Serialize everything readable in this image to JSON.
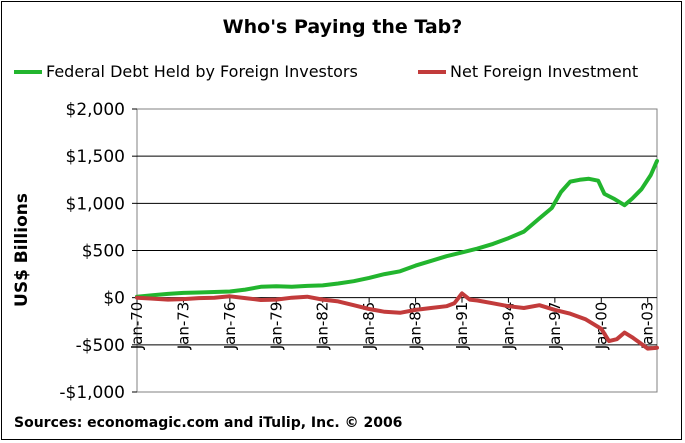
{
  "chart_data": {
    "type": "line",
    "title": "Who's Paying the Tab?",
    "xlabel": "",
    "ylabel": "US$ Billions",
    "ylim": [
      -1000,
      2000
    ],
    "yticks": [
      -1000,
      -500,
      0,
      500,
      1000,
      1500,
      2000
    ],
    "ytick_labels": [
      "-$1,000",
      "-$500",
      "$0",
      "$500",
      "$1,000",
      "$1,500",
      "$2,000"
    ],
    "xlim": [
      1970,
      2003.6
    ],
    "xticks": [
      1970,
      1973,
      1976,
      1979,
      1982,
      1985,
      1988,
      1991,
      1994,
      1997,
      2000,
      2003
    ],
    "xtick_labels": [
      "Jan-70",
      "Jan-73",
      "Jan-76",
      "Jan-79",
      "Jan-82",
      "Jan-85",
      "Jan-88",
      "Jan-91",
      "Jan-94",
      "Jan-97",
      "Jan-00",
      "Jan-03"
    ],
    "grid": "horizontal",
    "legend_position": "top",
    "series": [
      {
        "name": "Federal Debt Held by Foreign Investors",
        "color": "#22b52e",
        "points": [
          [
            1970.0,
            10
          ],
          [
            1971.0,
            25
          ],
          [
            1972.0,
            40
          ],
          [
            1973.0,
            50
          ],
          [
            1974.0,
            55
          ],
          [
            1975.0,
            60
          ],
          [
            1976.0,
            65
          ],
          [
            1977.0,
            85
          ],
          [
            1978.0,
            115
          ],
          [
            1979.0,
            120
          ],
          [
            1980.0,
            115
          ],
          [
            1981.0,
            125
          ],
          [
            1982.0,
            130
          ],
          [
            1983.0,
            150
          ],
          [
            1984.0,
            175
          ],
          [
            1985.0,
            210
          ],
          [
            1986.0,
            250
          ],
          [
            1987.0,
            280
          ],
          [
            1988.0,
            340
          ],
          [
            1989.0,
            390
          ],
          [
            1990.0,
            440
          ],
          [
            1991.0,
            480
          ],
          [
            1992.0,
            520
          ],
          [
            1993.0,
            570
          ],
          [
            1994.0,
            630
          ],
          [
            1995.0,
            700
          ],
          [
            1996.0,
            840
          ],
          [
            1996.8,
            950
          ],
          [
            1997.4,
            1120
          ],
          [
            1998.0,
            1230
          ],
          [
            1998.6,
            1250
          ],
          [
            1999.2,
            1260
          ],
          [
            1999.8,
            1240
          ],
          [
            2000.2,
            1100
          ],
          [
            2000.8,
            1050
          ],
          [
            2001.5,
            980
          ],
          [
            2002.0,
            1050
          ],
          [
            2002.6,
            1150
          ],
          [
            2003.2,
            1300
          ],
          [
            2003.6,
            1450
          ]
        ]
      },
      {
        "name": "Net Foreign Investment",
        "color": "#c23b3b",
        "points": [
          [
            1970.0,
            0
          ],
          [
            1971.0,
            -10
          ],
          [
            1972.0,
            -20
          ],
          [
            1973.0,
            -15
          ],
          [
            1974.0,
            -5
          ],
          [
            1975.0,
            0
          ],
          [
            1976.0,
            15
          ],
          [
            1977.0,
            -5
          ],
          [
            1978.0,
            -25
          ],
          [
            1979.0,
            -20
          ],
          [
            1980.0,
            0
          ],
          [
            1981.0,
            10
          ],
          [
            1982.0,
            -20
          ],
          [
            1983.0,
            -40
          ],
          [
            1984.0,
            -80
          ],
          [
            1985.0,
            -120
          ],
          [
            1986.0,
            -150
          ],
          [
            1987.0,
            -160
          ],
          [
            1988.0,
            -130
          ],
          [
            1989.0,
            -110
          ],
          [
            1990.0,
            -90
          ],
          [
            1990.5,
            -60
          ],
          [
            1991.0,
            45
          ],
          [
            1991.5,
            -20
          ],
          [
            1992.0,
            -30
          ],
          [
            1993.0,
            -60
          ],
          [
            1994.0,
            -90
          ],
          [
            1995.0,
            -110
          ],
          [
            1996.0,
            -80
          ],
          [
            1997.0,
            -130
          ],
          [
            1998.0,
            -170
          ],
          [
            1999.0,
            -230
          ],
          [
            2000.0,
            -330
          ],
          [
            2000.5,
            -460
          ],
          [
            2001.0,
            -440
          ],
          [
            2001.5,
            -370
          ],
          [
            2002.0,
            -420
          ],
          [
            2002.5,
            -480
          ],
          [
            2003.0,
            -540
          ],
          [
            2003.6,
            -530
          ]
        ]
      }
    ]
  },
  "footer": {
    "source": "Sources: economagic.com and iTulip, Inc. © 2006"
  }
}
